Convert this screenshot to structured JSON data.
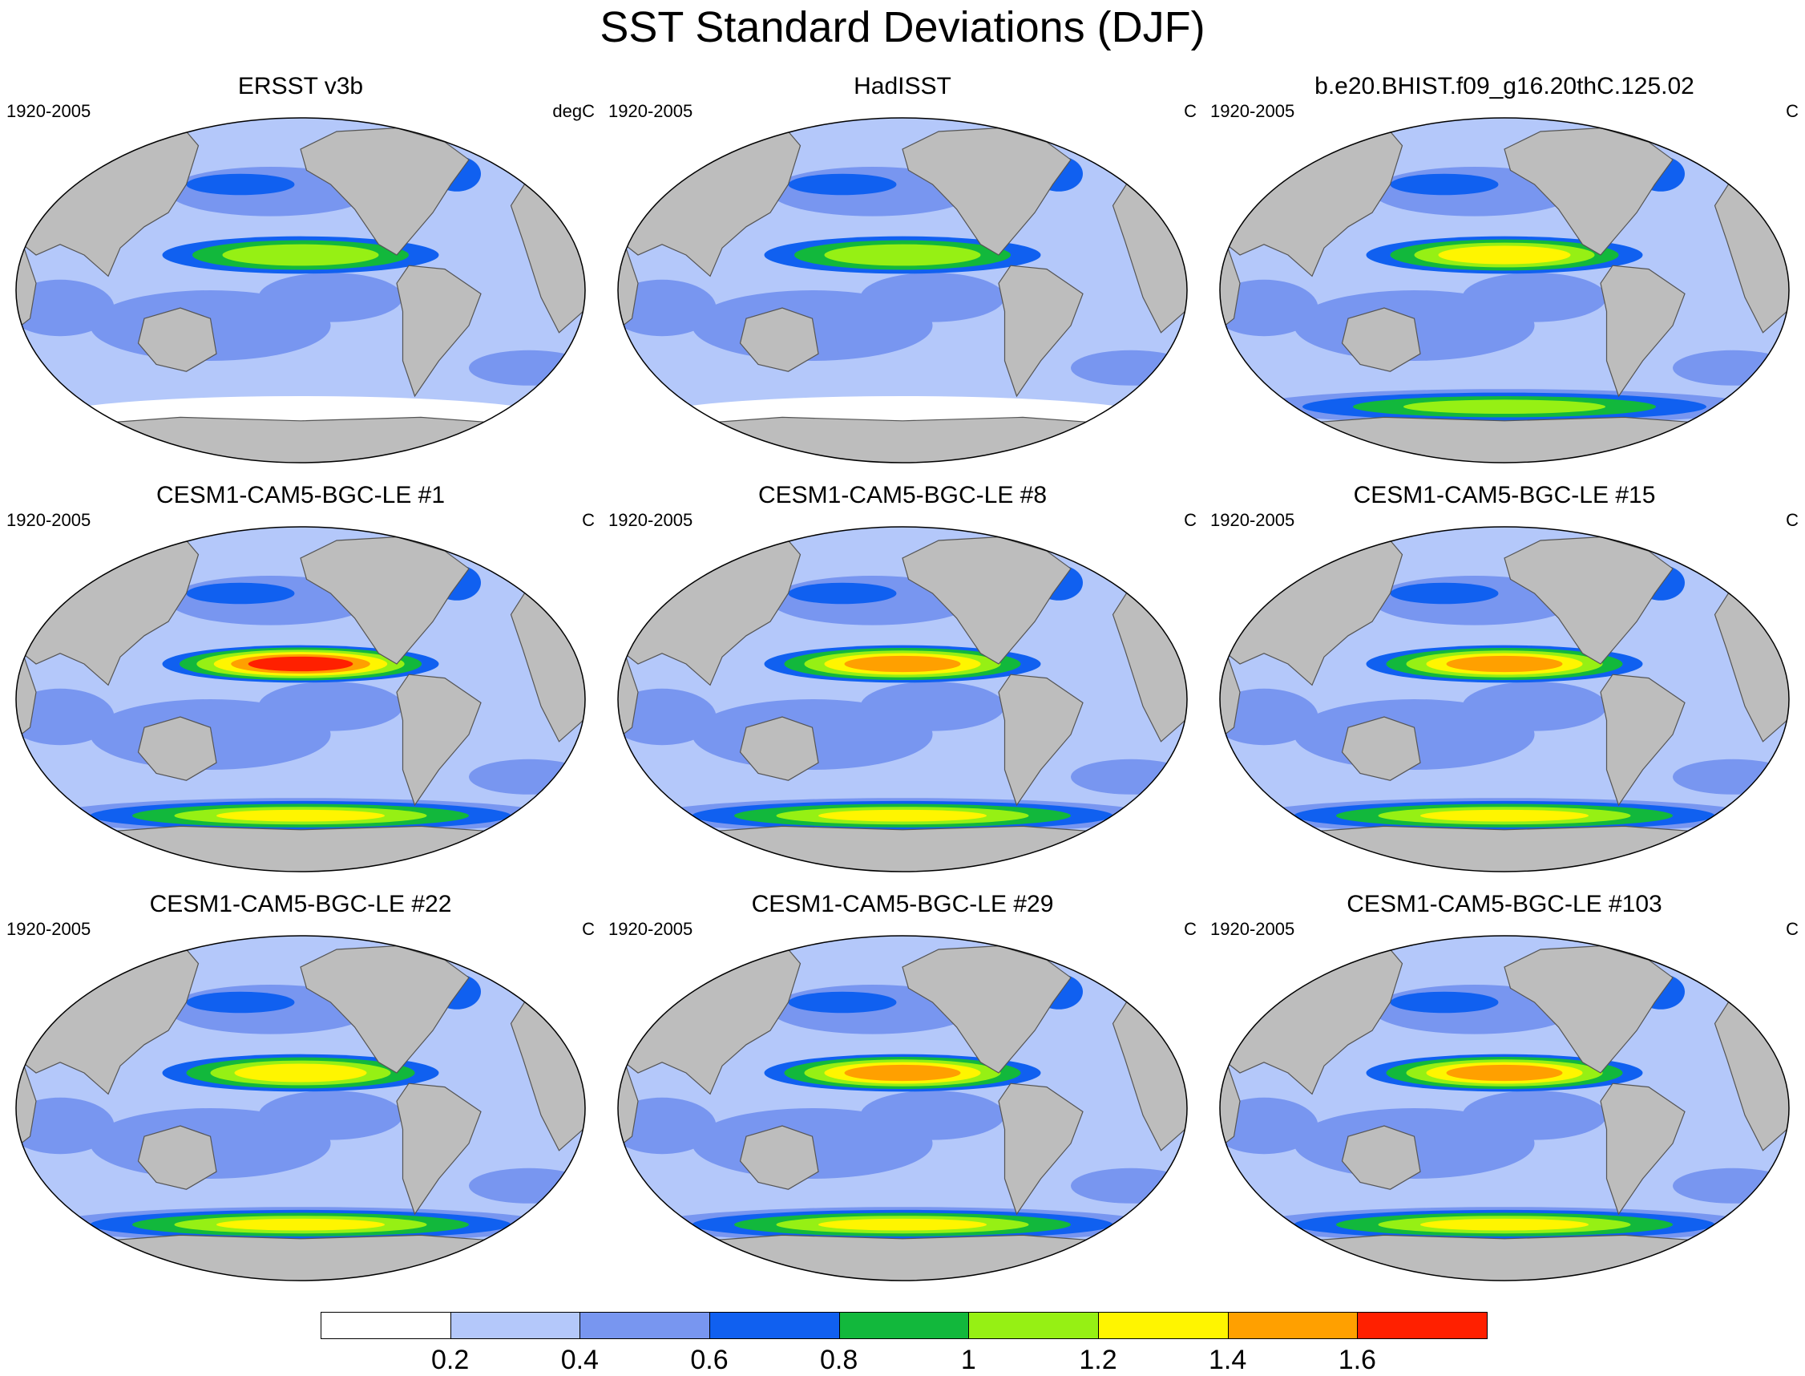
{
  "figure": {
    "title": "SST Standard Deviations (DJF)"
  },
  "colors": {
    "land": "#bdbdbd",
    "coast": "#555555",
    "levels": [
      "#ffffff",
      "#b4c8fa",
      "#7896f0",
      "#1060f0",
      "#12b83c",
      "#96f014",
      "#fff500",
      "#ffa000",
      "#ff2000"
    ]
  },
  "panels": [
    {
      "title": "ERSST v3b",
      "period": "1920-2005",
      "units": "degC",
      "nino_peak": 1.0,
      "south_band_peak": 0.2
    },
    {
      "title": "HadISST",
      "period": "1920-2005",
      "units": "C",
      "nino_peak": 1.0,
      "south_band_peak": 0.2
    },
    {
      "title": "b.e20.BHIST.f09_g16.20thC.125.02",
      "period": "1920-2005",
      "units": "C",
      "nino_peak": 1.2,
      "south_band_peak": 1.0
    },
    {
      "title": "CESM1-CAM5-BGC-LE #1",
      "period": "1920-2005",
      "units": "C",
      "nino_peak": 1.6,
      "south_band_peak": 1.2
    },
    {
      "title": "CESM1-CAM5-BGC-LE #8",
      "period": "1920-2005",
      "units": "C",
      "nino_peak": 1.4,
      "south_band_peak": 1.2
    },
    {
      "title": "CESM1-CAM5-BGC-LE #15",
      "period": "1920-2005",
      "units": "C",
      "nino_peak": 1.4,
      "south_band_peak": 1.2
    },
    {
      "title": "CESM1-CAM5-BGC-LE #22",
      "period": "1920-2005",
      "units": "C",
      "nino_peak": 1.2,
      "south_band_peak": 1.2
    },
    {
      "title": "CESM1-CAM5-BGC-LE #29",
      "period": "1920-2005",
      "units": "C",
      "nino_peak": 1.4,
      "south_band_peak": 1.2
    },
    {
      "title": "CESM1-CAM5-BGC-LE #103",
      "period": "1920-2005",
      "units": "C",
      "nino_peak": 1.4,
      "south_band_peak": 1.2
    }
  ],
  "colorbar": {
    "labels": [
      "0.2",
      "0.4",
      "0.6",
      "0.8",
      "1",
      "1.2",
      "1.4",
      "1.6"
    ]
  }
}
